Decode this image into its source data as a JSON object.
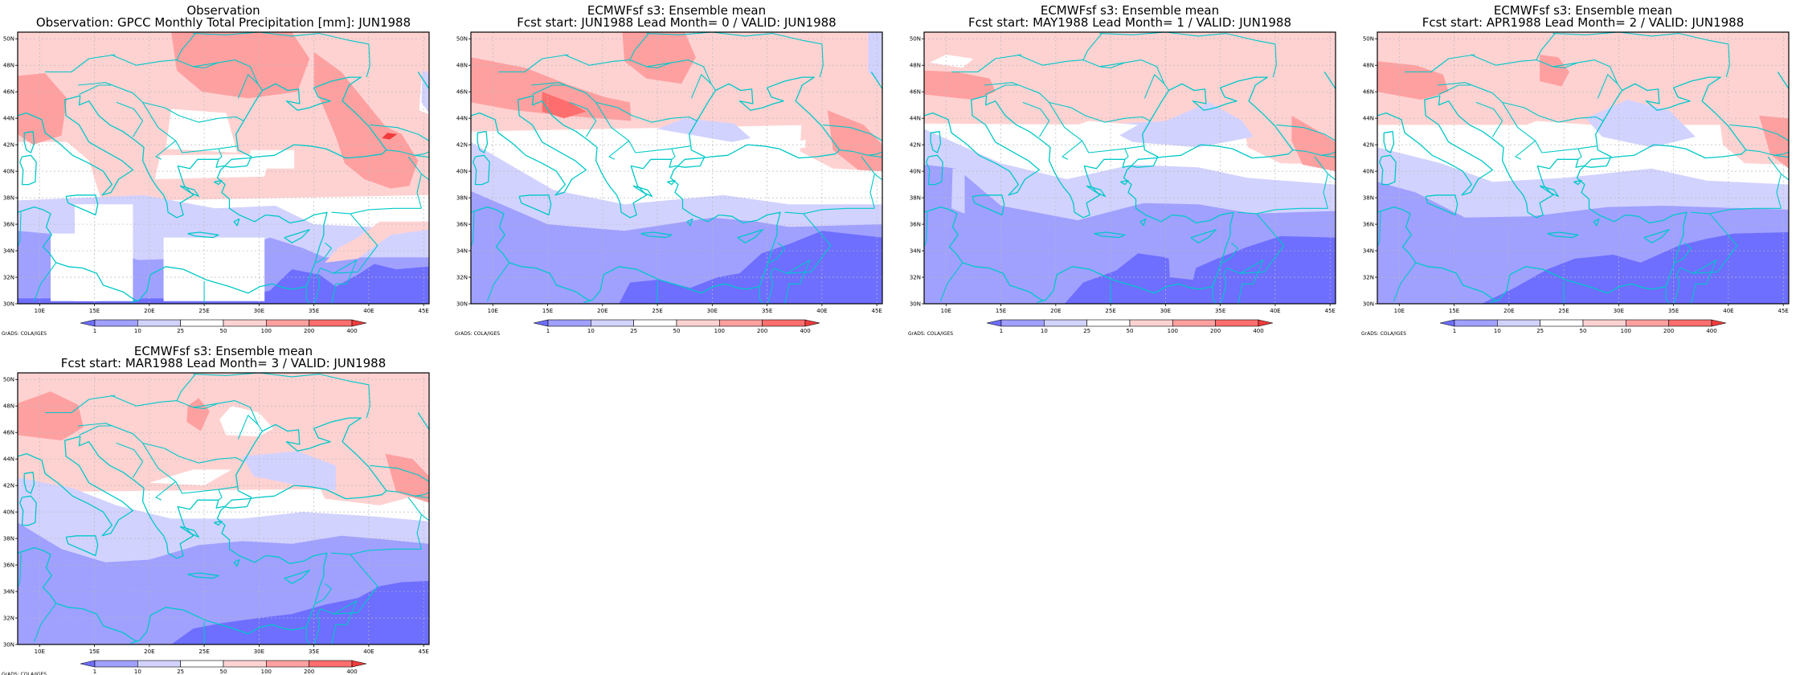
{
  "legend": {
    "labels": [
      "1",
      "10",
      "25",
      "50",
      "100",
      "200",
      "400"
    ],
    "colors": [
      "#6e6eff",
      "#a0a0ff",
      "#d2d2ff",
      "#ffffff",
      "#ffd2d2",
      "#ffa0a0",
      "#ff6e6e",
      "#f03c3c"
    ]
  },
  "credit": "GrADS: COLA/IGES",
  "axes": {
    "x_ticks": [
      "10E",
      "15E",
      "20E",
      "25E",
      "30E",
      "35E",
      "40E",
      "45E"
    ],
    "y_ticks": [
      "30N",
      "32N",
      "34N",
      "36N",
      "38N",
      "40N",
      "42N",
      "44N",
      "46N",
      "48N",
      "50N"
    ]
  },
  "coastline_color": "#00c8c8",
  "panels": [
    {
      "id": "obs",
      "title_line1": "Observation",
      "title_line2": "Observation: GPCC Monthly Total Precipitation [mm]: JUN1988",
      "kind": "obs"
    },
    {
      "id": "lead0",
      "title_line1": "ECMWFsf s3: Ensemble mean",
      "title_line2": "Fcst start: JUN1988  Lead Month= 0 / VALID: JUN1988",
      "kind": "fcst",
      "lead": 0
    },
    {
      "id": "lead1",
      "title_line1": "ECMWFsf s3: Ensemble mean",
      "title_line2": "Fcst start: MAY1988  Lead Month= 1 / VALID: JUN1988",
      "kind": "fcst",
      "lead": 1
    },
    {
      "id": "lead2",
      "title_line1": "ECMWFsf s3: Ensemble mean",
      "title_line2": "Fcst start: APR1988  Lead Month= 2 / VALID: JUN1988",
      "kind": "fcst",
      "lead": 2
    },
    {
      "id": "lead3",
      "title_line1": "ECMWFsf s3: Ensemble mean",
      "title_line2": "Fcst start: MAR1988  Lead Month= 3 / VALID: JUN1988",
      "kind": "fcst",
      "lead": 3
    }
  ]
}
